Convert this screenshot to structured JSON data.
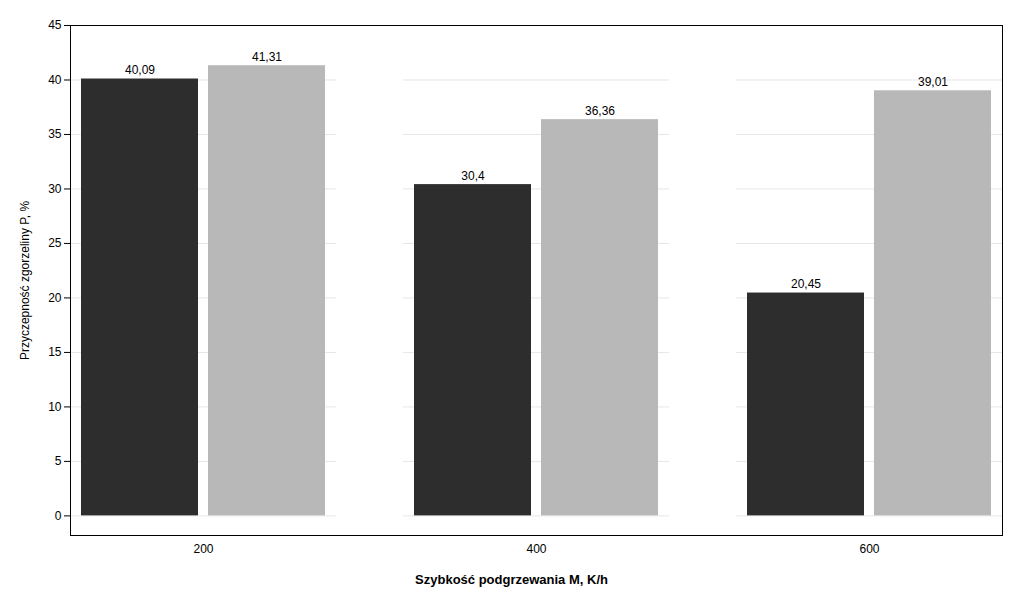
{
  "chart_data": {
    "type": "bar",
    "categories": [
      "200",
      "400",
      "600"
    ],
    "series": [
      {
        "color": "#2d2d2d",
        "values": [
          40.09,
          30.4,
          20.45
        ],
        "value_labels": [
          "40,09",
          "30,4",
          "20,45"
        ]
      },
      {
        "color": "#b8b8b8",
        "values": [
          41.31,
          36.36,
          39.01
        ],
        "value_labels": [
          "41,31",
          "36,36",
          "39,01"
        ]
      }
    ],
    "xlabel": "Szybkość podgrzewania M, K/h",
    "ylabel": "Przyczepność zgorzeliny P, %",
    "ylim": [
      -1.8,
      45
    ],
    "yticks": [
      0,
      5,
      10,
      15,
      20,
      25,
      30,
      35,
      40,
      45
    ],
    "grid": true,
    "data_labels": true
  }
}
